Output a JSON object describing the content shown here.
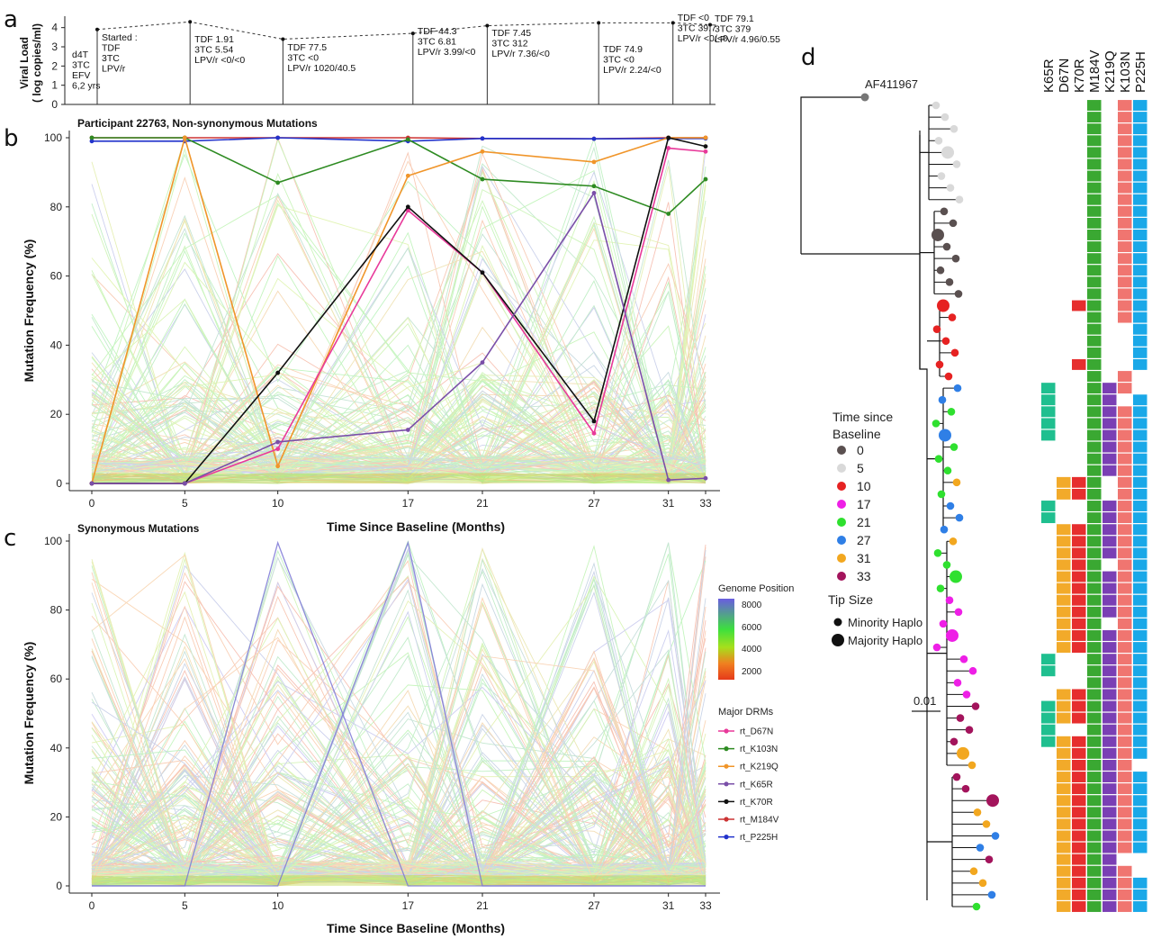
{
  "panel_labels": {
    "a": "a",
    "b": "b",
    "c": "c",
    "d": "d"
  },
  "chart_data": [
    {
      "id": "viral-load",
      "type": "line",
      "ylabel_line1": "Viral Load",
      "ylabel_line2": "( log copies/ml)",
      "yticks": [
        "0",
        "1",
        "2",
        "3",
        "4"
      ],
      "ylim": [
        0,
        4.5
      ],
      "x": [
        0,
        5,
        10,
        17,
        21,
        27,
        31,
        33
      ],
      "values": [
        3.9,
        4.3,
        3.4,
        3.7,
        4.1,
        4.25,
        4.25,
        4.15
      ],
      "annotations": [
        {
          "at": 0,
          "lines": [
            "d4T",
            "3TC",
            "EFV",
            "6,2 yrs"
          ],
          "side": "left"
        },
        {
          "at": 0,
          "lines": [
            "Started :",
            "TDF",
            "3TC",
            "LPV/r"
          ]
        },
        {
          "at": 5,
          "lines": [
            "TDF 1.91",
            "3TC 5.54",
            "LPV/r <0/<0"
          ]
        },
        {
          "at": 10,
          "lines": [
            "TDF 77.5",
            "3TC <0",
            "LPV/r 1020/40.5"
          ]
        },
        {
          "at": 17,
          "lines": [
            "TDF 44.3",
            "3TC 6.81",
            "LPV/r 3.99/<0"
          ]
        },
        {
          "at": 21,
          "lines": [
            "TDF 7.45",
            "3TC 312",
            "LPV/r 7.36/<0"
          ]
        },
        {
          "at": 27,
          "lines": [
            "TDF 74.9",
            "3TC <0",
            "LPV/r 2.24/<0"
          ]
        },
        {
          "at": 31,
          "lines": [
            "TDF <0",
            "3TC 39.7",
            "LPV/r <0/<0"
          ]
        },
        {
          "at": 33,
          "lines": [
            "TDF 79.1",
            "3TC 379",
            "LPV/r 4.96/0.55"
          ]
        }
      ]
    },
    {
      "id": "non-synonymous",
      "type": "line",
      "title": "Participant 22763, Non-synonymous Mutations",
      "xlabel": "Time Since Baseline (Months)",
      "ylabel": "Mutation Frequency (%)",
      "x": [
        0,
        5,
        10,
        17,
        21,
        27,
        31,
        33
      ],
      "xticks": [
        "0",
        "5",
        "10",
        "17",
        "21",
        "27",
        "31",
        "33"
      ],
      "yticks": [
        "0",
        "20",
        "40",
        "60",
        "80",
        "100"
      ],
      "ylim": [
        0,
        100
      ],
      "series": [
        {
          "name": "rt_M184V",
          "color": "#cc3333",
          "values": [
            100,
            100,
            100,
            100,
            99.8,
            99.7,
            100,
            100
          ]
        },
        {
          "name": "rt_P225H",
          "color": "#2233cc",
          "values": [
            99,
            99,
            100,
            99,
            99.8,
            99.7,
            99.8,
            99.8
          ]
        },
        {
          "name": "rt_K103N",
          "color": "#2e8b22",
          "values": [
            100,
            100,
            87,
            99.5,
            88,
            86,
            78,
            88
          ]
        },
        {
          "name": "rt_K219Q",
          "color": "#f0952a",
          "values": [
            0,
            100,
            5,
            89,
            96,
            93,
            100,
            100
          ]
        },
        {
          "name": "rt_D67N",
          "color": "#e8399a",
          "values": [
            0,
            0,
            10,
            79,
            61,
            14.5,
            97,
            96
          ]
        },
        {
          "name": "rt_K70R",
          "color": "#111111",
          "values": [
            0,
            0,
            32,
            80,
            61,
            18,
            100,
            97.5
          ]
        },
        {
          "name": "rt_K65R",
          "color": "#7a4fa8",
          "values": [
            0,
            0,
            12,
            15.5,
            35,
            84,
            1,
            1.5
          ]
        }
      ]
    },
    {
      "id": "synonymous",
      "type": "line",
      "title": "Synonymous Mutations",
      "xlabel": "Time Since Baseline (Months)",
      "ylabel": "Mutation Frequency (%)",
      "x": [
        0,
        5,
        10,
        17,
        21,
        27,
        31,
        33
      ],
      "xticks": [
        "0",
        "5",
        "10",
        "17",
        "21",
        "27",
        "31",
        "33"
      ],
      "yticks": [
        "0",
        "20",
        "40",
        "60",
        "80",
        "100"
      ],
      "ylim": [
        0,
        100
      ],
      "highlight": [
        {
          "color": "#7d78d6",
          "values": [
            0,
            0,
            99.5,
            0,
            0,
            0,
            0,
            0
          ]
        },
        {
          "color": "#7d78d6",
          "values": [
            0,
            0,
            0,
            99.5,
            0,
            0,
            0,
            0
          ]
        }
      ]
    },
    {
      "id": "legend",
      "genome_position_title": "Genome Position",
      "genome_ticks": [
        "8000",
        "6000",
        "4000",
        "2000"
      ],
      "major_drms_title": "Major DRMs",
      "drms": [
        {
          "name": "rt_D67N",
          "color": "#e8399a"
        },
        {
          "name": "rt_K103N",
          "color": "#2e8b22"
        },
        {
          "name": "rt_K219Q",
          "color": "#f0952a"
        },
        {
          "name": "rt_K65R",
          "color": "#7a4fa8"
        },
        {
          "name": "rt_K70R",
          "color": "#111111"
        },
        {
          "name": "rt_M184V",
          "color": "#cc3333"
        },
        {
          "name": "rt_P225H",
          "color": "#2233cc"
        }
      ]
    },
    {
      "id": "tree",
      "type": "tree",
      "outgroup": "AF411967",
      "scale_label": "0.01",
      "legend_time_title_1": "Time since",
      "legend_time_title_2": "Baseline",
      "times": [
        {
          "label": "0",
          "color": "#5a5050"
        },
        {
          "label": "5",
          "color": "#d9d9d9"
        },
        {
          "label": "10",
          "color": "#e62222"
        },
        {
          "label": "17",
          "color": "#ee1fe6"
        },
        {
          "label": "21",
          "color": "#2fe02f"
        },
        {
          "label": "27",
          "color": "#2f7fe6"
        },
        {
          "label": "31",
          "color": "#f2a71f"
        },
        {
          "label": "33",
          "color": "#a3145c"
        }
      ],
      "tip_size_title": "Tip Size",
      "tip_sizes": [
        "Minority Haplo",
        "Majority Haplo"
      ],
      "mutation_columns": [
        {
          "name": "K65R",
          "color": "#1fbf8f"
        },
        {
          "name": "D67N",
          "color": "#f2aa2a"
        },
        {
          "name": "K70R",
          "color": "#e62e2e"
        },
        {
          "name": "M184V",
          "color": "#3aa832"
        },
        {
          "name": "K219Q",
          "color": "#7a3fb4"
        },
        {
          "name": "K103N",
          "color": "#f07570"
        },
        {
          "name": "P225H",
          "color": "#1aa8e8"
        }
      ]
    }
  ]
}
